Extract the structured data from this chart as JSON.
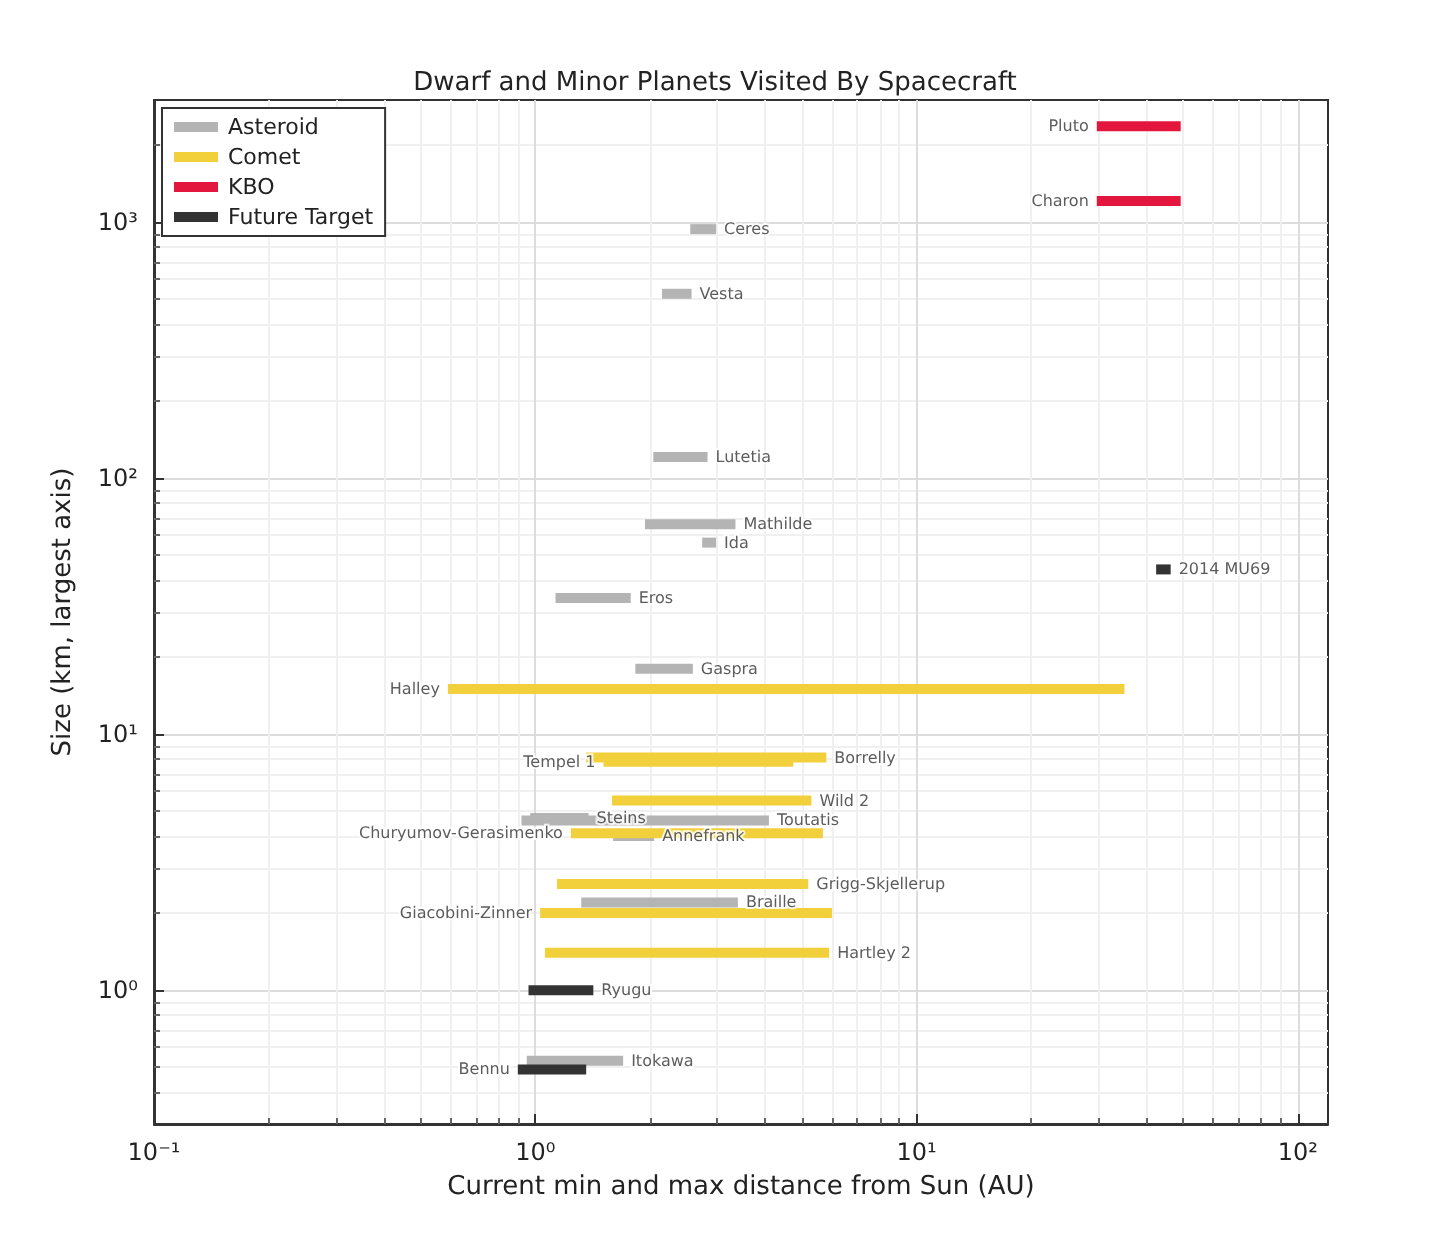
{
  "chart_data": {
    "type": "line",
    "title": "Dwarf and Minor Planets Visited By Spacecraft",
    "xlabel": "Current min and max distance from Sun (AU)",
    "ylabel": "Size (km, largest axis)",
    "log": "xy",
    "grid": true,
    "legend": "top left",
    "marker": "none",
    "line_style": "solid",
    "xlim": [
      0.1,
      120
    ],
    "xticks": [
      {
        "value": 0.1,
        "label": "10⁻¹"
      },
      {
        "value": 1,
        "label": "10⁰"
      },
      {
        "value": 10,
        "label": "10¹"
      },
      {
        "value": 100,
        "label": "10²"
      }
    ],
    "ylim": [
      0.3,
      3000
    ],
    "yticks": [
      {
        "value": 1,
        "label": "10⁰"
      },
      {
        "value": 10,
        "label": "10¹"
      },
      {
        "value": 100,
        "label": "10²"
      },
      {
        "value": 1000,
        "label": "10³"
      }
    ],
    "series": [
      {
        "name": "Asteroid",
        "color": "#b4b4b4",
        "x": [
          2.55,
          2.98
        ],
        "values": [
          939,
          939
        ]
      },
      {
        "color": "#b4b4b4",
        "x": [
          2.15,
          2.57
        ],
        "values": [
          525,
          525
        ]
      },
      {
        "color": "#b4b4b4",
        "x": [
          2.04,
          2.83
        ],
        "values": [
          121,
          121
        ]
      },
      {
        "color": "#b4b4b4",
        "x": [
          1.94,
          3.35
        ],
        "values": [
          66,
          66
        ]
      },
      {
        "color": "#b4b4b4",
        "x": [
          2.74,
          2.98
        ],
        "values": [
          56,
          56
        ]
      },
      {
        "color": "#b4b4b4",
        "x": [
          1.13,
          1.78
        ],
        "values": [
          34,
          34
        ]
      },
      {
        "color": "#b4b4b4",
        "x": [
          1.83,
          2.59
        ],
        "values": [
          18,
          18
        ]
      },
      {
        "color": "#b4b4b4",
        "x": [
          0.92,
          4.1
        ],
        "values": [
          4.6,
          4.6
        ]
      },
      {
        "color": "#b4b4b4",
        "x": [
          0.97,
          1.38
        ],
        "values": [
          4.7,
          4.7
        ]
      },
      {
        "color": "#b4b4b4",
        "x": [
          1.6,
          2.05
        ],
        "values": [
          4.0,
          4.0
        ]
      },
      {
        "color": "#b4b4b4",
        "x": [
          1.32,
          3.4
        ],
        "values": [
          2.2,
          2.2
        ]
      },
      {
        "color": "#b4b4b4",
        "x": [
          0.95,
          1.7
        ],
        "values": [
          0.53,
          0.53
        ]
      },
      {
        "name": "Comet",
        "color": "#f2d03c",
        "x": [
          0.59,
          35.1
        ],
        "values": [
          15,
          15
        ]
      },
      {
        "color": "#f2d03c",
        "x": [
          1.51,
          4.75
        ],
        "values": [
          7.8,
          7.8
        ]
      },
      {
        "color": "#f2d03c",
        "x": [
          1.36,
          5.8
        ],
        "values": [
          8.1,
          8.1
        ]
      },
      {
        "color": "#f2d03c",
        "x": [
          1.59,
          5.3
        ],
        "values": [
          5.5,
          5.5
        ]
      },
      {
        "color": "#f2d03c",
        "x": [
          1.24,
          5.68
        ],
        "values": [
          4.1,
          4.1
        ]
      },
      {
        "color": "#f2d03c",
        "x": [
          1.14,
          5.2
        ],
        "values": [
          2.6,
          2.6
        ]
      },
      {
        "color": "#f2d03c",
        "x": [
          1.03,
          6.0
        ],
        "values": [
          2.0,
          2.0
        ]
      },
      {
        "color": "#f2d03c",
        "x": [
          1.06,
          5.9
        ],
        "values": [
          1.4,
          1.4
        ]
      },
      {
        "name": "KBO",
        "color": "#e3173e",
        "x": [
          29.7,
          49.3
        ],
        "values": [
          2370,
          2370
        ]
      },
      {
        "color": "#e3173e",
        "x": [
          29.7,
          49.3
        ],
        "values": [
          1210,
          1210
        ]
      },
      {
        "name": "Future Target",
        "color": "#333333",
        "x": [
          42.5,
          46.4
        ],
        "values": [
          44,
          44
        ]
      },
      {
        "color": "#333333",
        "x": [
          0.96,
          1.42
        ],
        "values": [
          1.0,
          1.0
        ]
      },
      {
        "color": "#333333",
        "x": [
          0.9,
          1.36
        ],
        "values": [
          0.49,
          0.49
        ]
      }
    ],
    "annotations": [
      {
        "text": "Pluto",
        "x": 29.7,
        "y": 2370
      },
      {
        "text": "Charon",
        "x": 29.7,
        "y": 1210
      },
      {
        "text": "Ceres",
        "x": 2.98,
        "y": 939
      },
      {
        "text": "Vesta",
        "x": 2.57,
        "y": 525
      },
      {
        "text": "Lutetia",
        "x": 2.83,
        "y": 121
      },
      {
        "text": "Mathilde",
        "x": 3.35,
        "y": 66
      },
      {
        "text": "Ida",
        "x": 2.98,
        "y": 56
      },
      {
        "text": "2014 MU69",
        "x": 46.4,
        "y": 44
      },
      {
        "text": "Eros",
        "x": 1.78,
        "y": 34
      },
      {
        "text": "Gaspra",
        "x": 2.59,
        "y": 18
      },
      {
        "text": "Halley",
        "x": 0.59,
        "y": 15
      },
      {
        "text": "Tempel 1",
        "x": 1.51,
        "y": 7.8
      },
      {
        "text": "Borrelly",
        "x": 5.8,
        "y": 8.1
      },
      {
        "text": "Wild 2",
        "x": 5.3,
        "y": 5.5
      },
      {
        "text": "Steins",
        "x": 1.38,
        "y": 4.7
      },
      {
        "text": "Toutatis",
        "x": 4.1,
        "y": 4.6
      },
      {
        "text": "Churyumov-Gerasimenko",
        "x": 1.24,
        "y": 4.1
      },
      {
        "text": "Annefrank",
        "x": 2.05,
        "y": 4.0
      },
      {
        "text": "Grigg-Skjellerup",
        "x": 5.2,
        "y": 2.6
      },
      {
        "text": "Braille",
        "x": 3.4,
        "y": 2.2
      },
      {
        "text": "Giacobini-Zinner",
        "x": 1.03,
        "y": 2.0
      },
      {
        "text": "Hartley 2",
        "x": 5.9,
        "y": 1.4
      },
      {
        "text": "Ryugu",
        "x": 1.42,
        "y": 1.0
      },
      {
        "text": "Itokawa",
        "x": 1.7,
        "y": 0.53
      },
      {
        "text": "Bennu",
        "x": 0.9,
        "y": 0.49
      }
    ]
  }
}
